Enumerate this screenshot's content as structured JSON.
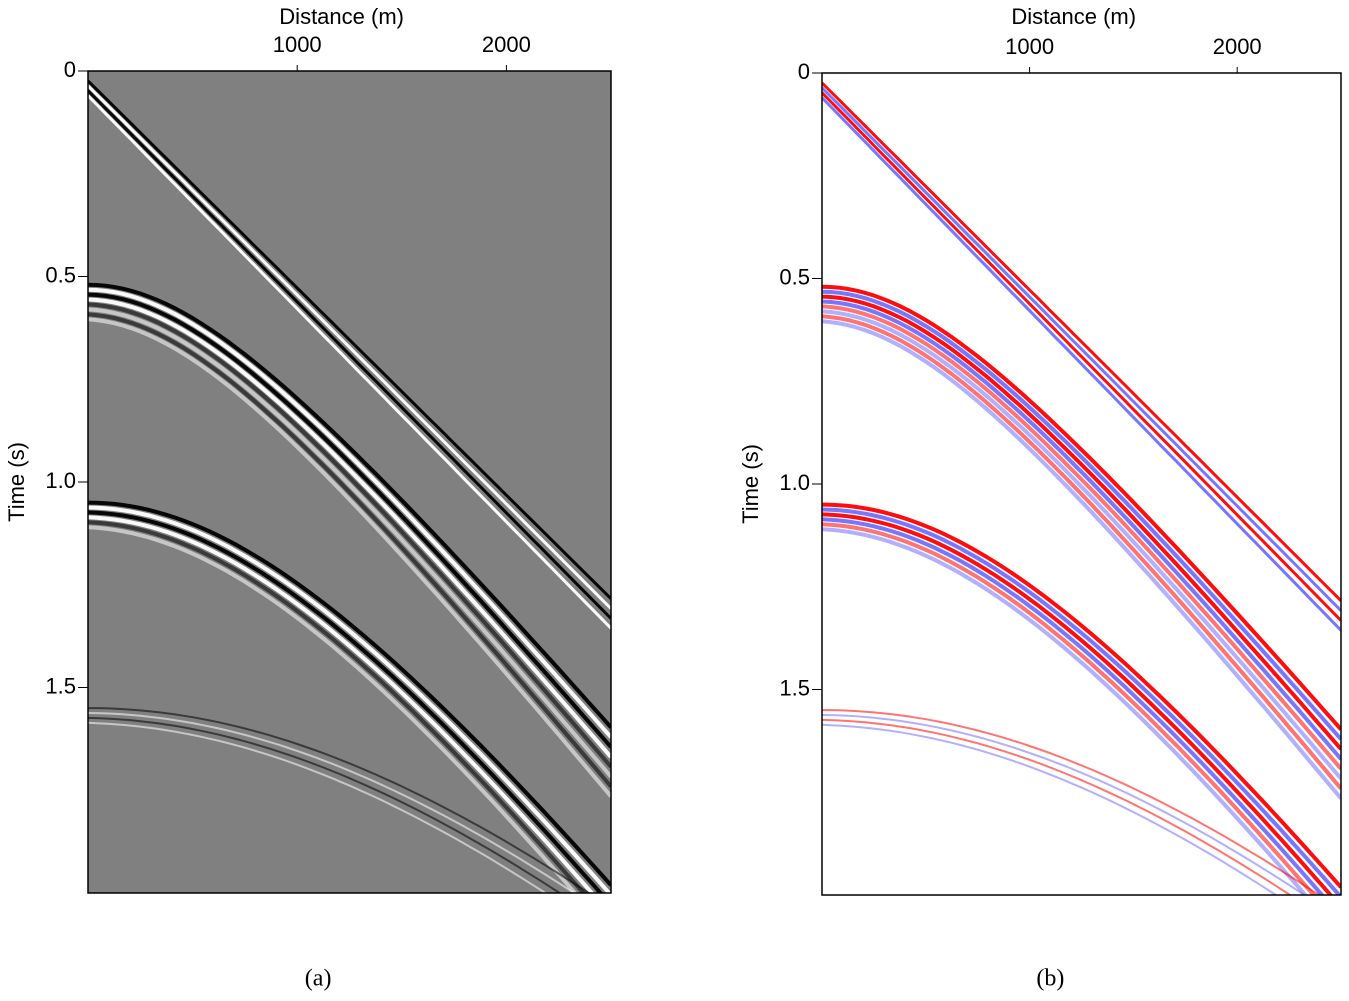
{
  "chart_data": [
    {
      "type": "image",
      "x_label": "Distance (m)",
      "y_label": "Time (s)",
      "caption": "(a)",
      "xlim": [
        0,
        2500
      ],
      "xticks": [
        1000,
        2000
      ],
      "ylim": [
        0,
        2
      ],
      "yticks": [
        0,
        0.5,
        {
          "value": 1,
          "label": "1.0"
        },
        1.5
      ],
      "y_reversed": true,
      "background": "#808080",
      "colors": [
        "#000000",
        "#ffffff"
      ]
    },
    {
      "type": "image",
      "x_label": "Distance (m)",
      "y_label": "Time (s)",
      "caption": "(b)",
      "xlim": [
        0,
        2500
      ],
      "xticks": [
        1000,
        2000
      ],
      "ylim": [
        0,
        2
      ],
      "yticks": [
        0,
        0.5,
        {
          "value": 1,
          "label": "1.0"
        },
        1.5
      ],
      "y_reversed": true,
      "background": "#ffffff",
      "colors": [
        "#ff0000",
        "#6f6fff"
      ]
    }
  ]
}
